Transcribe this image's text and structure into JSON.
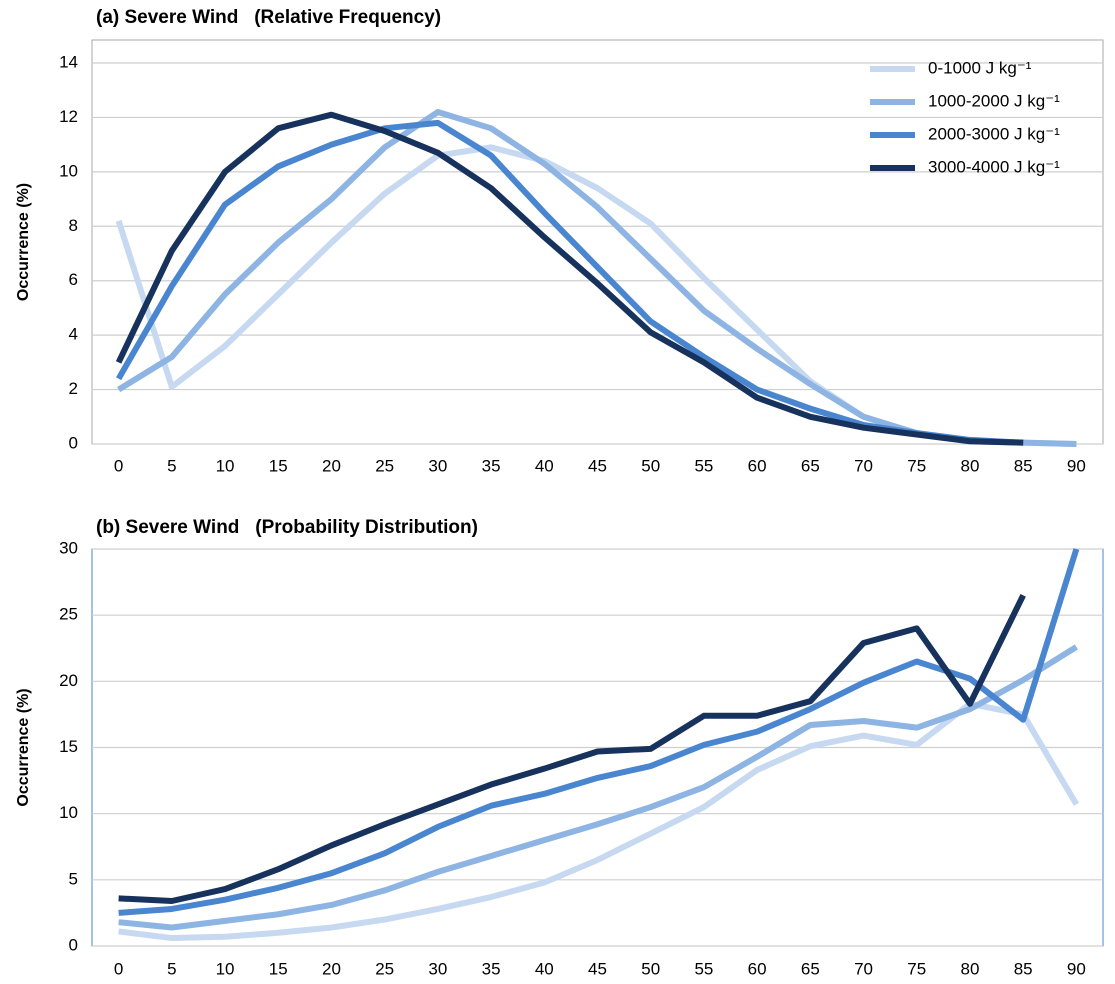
{
  "chart_data": [
    {
      "type": "line",
      "title": "(a) Severe Wind   (Relative Frequency)",
      "y_label": "Occurrence (%)",
      "categories": [
        "0",
        "5",
        "10",
        "15",
        "20",
        "25",
        "30",
        "35",
        "40",
        "45",
        "50",
        "55",
        "60",
        "65",
        "70",
        "75",
        "80",
        "85",
        "90"
      ],
      "ylim": [
        0,
        14
      ],
      "yticks": [
        0,
        2,
        4,
        6,
        8,
        10,
        12,
        14
      ],
      "grid": true,
      "legend": "top-right",
      "series": [
        {
          "name": "0-1000 J kg⁻¹",
          "color": "#c6d9f1",
          "values": [
            8.2,
            2.1,
            3.6,
            5.5,
            7.4,
            9.2,
            10.6,
            10.9,
            10.4,
            9.4,
            8.1,
            6.1,
            4.2,
            2.3,
            1.0,
            0.4,
            0.1,
            0.05,
            0
          ]
        },
        {
          "name": "1000-2000 J kg⁻¹",
          "color": "#8db4e2",
          "values": [
            2.0,
            3.2,
            5.5,
            7.4,
            9.0,
            10.9,
            12.2,
            11.6,
            10.3,
            8.7,
            6.8,
            4.9,
            3.5,
            2.2,
            1.0,
            0.4,
            0.1,
            0.05,
            0
          ]
        },
        {
          "name": "2000-3000 J kg⁻¹",
          "color": "#4a86d0",
          "values": [
            2.4,
            5.8,
            8.8,
            10.2,
            11.0,
            11.6,
            11.8,
            10.6,
            8.5,
            6.5,
            4.5,
            3.2,
            2.0,
            1.3,
            0.7,
            0.4,
            0.15,
            0.05,
            null
          ]
        },
        {
          "name": "3000-4000 J kg⁻¹",
          "color": "#17325c",
          "values": [
            3.0,
            7.1,
            10.0,
            11.6,
            12.1,
            11.5,
            10.7,
            9.4,
            7.6,
            5.9,
            4.1,
            3.0,
            1.7,
            1.0,
            0.6,
            0.35,
            0.1,
            0.05,
            null
          ]
        }
      ]
    },
    {
      "type": "line",
      "title": "(b) Severe Wind   (Probability Distribution)",
      "y_label": "Occurrence (%)",
      "categories": [
        "0",
        "5",
        "10",
        "15",
        "20",
        "25",
        "30",
        "35",
        "40",
        "45",
        "50",
        "55",
        "60",
        "65",
        "70",
        "75",
        "80",
        "85",
        "90"
      ],
      "ylim": [
        0,
        30
      ],
      "yticks": [
        0,
        5,
        10,
        15,
        20,
        25,
        30
      ],
      "grid": true,
      "series": [
        {
          "color": "#c6d9f1",
          "values": [
            1.1,
            0.6,
            0.7,
            1.0,
            1.4,
            2.0,
            2.8,
            3.7,
            4.8,
            6.5,
            8.5,
            10.5,
            13.3,
            15.1,
            15.9,
            15.2,
            18.3,
            17.5,
            10.7
          ]
        },
        {
          "color": "#8db4e2",
          "values": [
            1.8,
            1.4,
            1.9,
            2.4,
            3.1,
            4.2,
            5.6,
            6.8,
            8.0,
            9.2,
            10.5,
            12.0,
            14.3,
            16.7,
            17.0,
            16.5,
            17.9,
            20.1,
            22.6
          ]
        },
        {
          "color": "#4a86d0",
          "values": [
            2.5,
            2.8,
            3.5,
            4.4,
            5.5,
            7.0,
            9.0,
            10.6,
            11.5,
            12.7,
            13.6,
            15.2,
            16.2,
            17.9,
            19.9,
            21.5,
            20.2,
            17.1,
            30
          ]
        },
        {
          "color": "#17325c",
          "values": [
            3.6,
            3.4,
            4.3,
            5.8,
            7.6,
            9.2,
            10.7,
            12.2,
            13.4,
            14.7,
            14.9,
            17.4,
            17.4,
            18.5,
            22.9,
            24.0,
            18.3,
            26.5,
            null
          ]
        }
      ]
    }
  ]
}
